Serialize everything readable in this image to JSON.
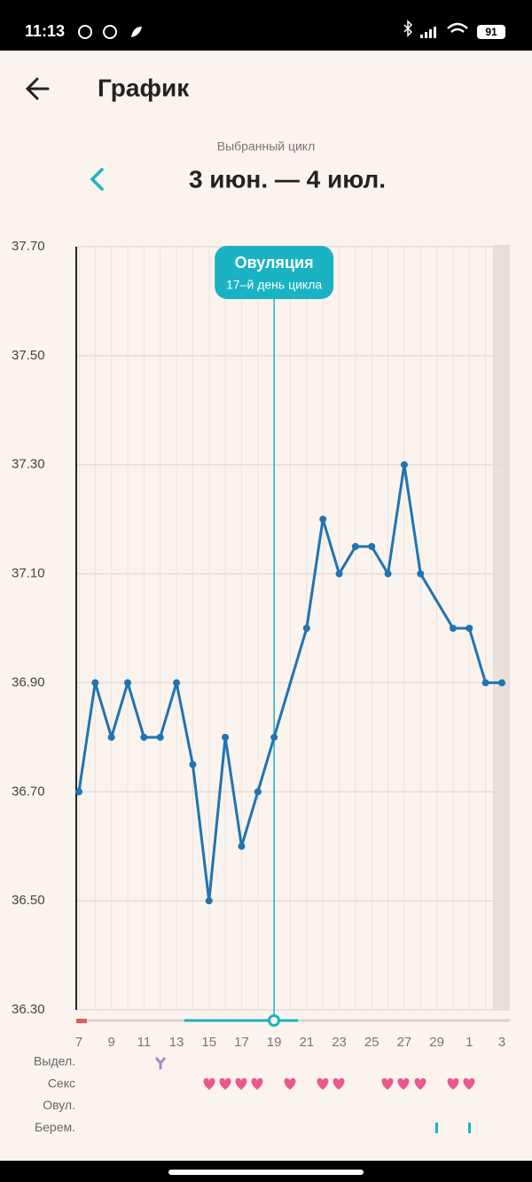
{
  "status_bar": {
    "time": "11:13",
    "battery": "91"
  },
  "header": {
    "title": "График"
  },
  "cycle": {
    "label": "Выбранный цикл",
    "range": "3 июн. — 4 июл."
  },
  "chart_data": {
    "type": "line",
    "categories": [
      "7",
      null,
      "9",
      null,
      "11",
      null,
      "13",
      null,
      "15",
      null,
      "17",
      null,
      "19",
      null,
      "21",
      null,
      "23",
      null,
      "25",
      null,
      "27",
      null,
      "29",
      null,
      "1",
      null,
      "3"
    ],
    "values": [
      36.7,
      36.9,
      36.8,
      36.9,
      36.8,
      36.8,
      36.9,
      36.75,
      36.5,
      36.8,
      36.6,
      36.7,
      36.8,
      null,
      37.0,
      37.2,
      37.1,
      37.15,
      37.15,
      37.1,
      37.3,
      37.1,
      null,
      37.0,
      37.0,
      36.9,
      36.9
    ],
    "color": "#1f74b3",
    "ylim": [
      36.3,
      37.7
    ],
    "yticks": [
      {
        "value": 36.3,
        "label": "36.30"
      },
      {
        "value": 36.5,
        "label": "36.50"
      },
      {
        "value": 36.7,
        "label": "36.70"
      },
      {
        "value": 36.9,
        "label": "36.90"
      },
      {
        "value": 37.1,
        "label": "37.10"
      },
      {
        "value": 37.3,
        "label": "37.30"
      },
      {
        "value": 37.5,
        "label": "37.50"
      },
      {
        "value": 37.7,
        "label": "37.70"
      }
    ],
    "grid": true,
    "annotation": {
      "title": "Овуляция",
      "subtitle": "17–й день цикла"
    },
    "rows": [
      "Выдел.",
      "Секс",
      "Овул.",
      "Берем."
    ]
  }
}
